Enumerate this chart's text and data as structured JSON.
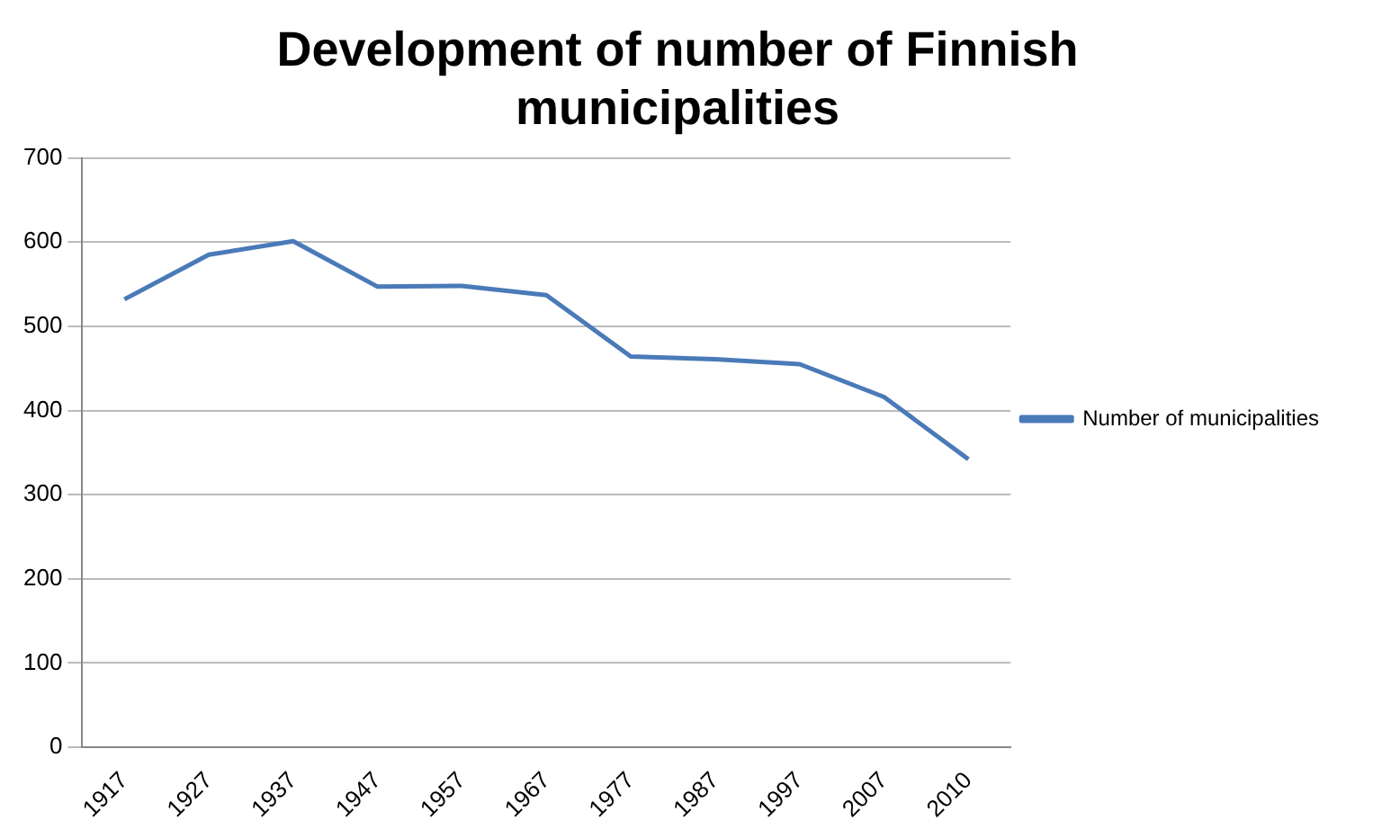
{
  "chart_data": {
    "type": "line",
    "title": "Development of number of Finnish municipalities",
    "categories": [
      "1917",
      "1927",
      "1937",
      "1947",
      "1957",
      "1967",
      "1977",
      "1987",
      "1997",
      "2007",
      "2010"
    ],
    "series": [
      {
        "name": "Number of municipalities",
        "color": "#4a7ab8",
        "values": [
          532,
          585,
          601,
          547,
          548,
          537,
          464,
          461,
          455,
          416,
          342
        ]
      }
    ],
    "ylim": [
      0,
      700
    ],
    "yticks": [
      0,
      100,
      200,
      300,
      400,
      500,
      600,
      700
    ],
    "grid": "y",
    "legend": "right",
    "marker": "none"
  }
}
